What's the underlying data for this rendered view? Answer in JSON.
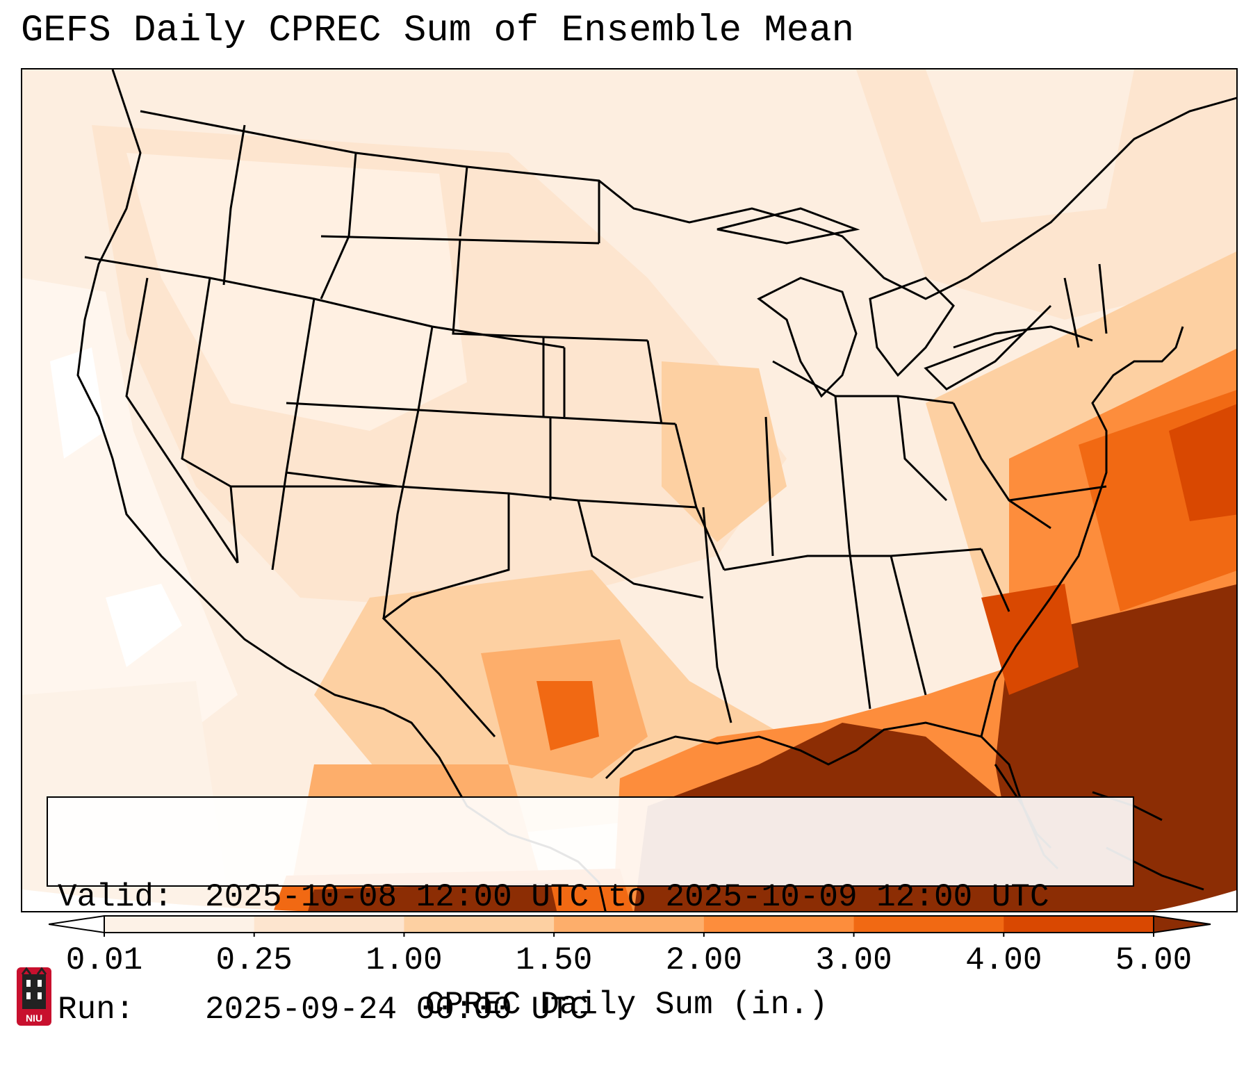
{
  "title": "GEFS Daily CPREC Sum of Ensemble Mean",
  "info": {
    "valid_label": "Valid:",
    "valid_value": "2025-10-08 12:00 UTC to 2025-10-09 12:00 UTC",
    "run_label": "Run:",
    "run_value": "2025-09-24 00:00 UTC"
  },
  "colorbar": {
    "label": "CPREC Daily Sum (in.)",
    "ticks": [
      "0.01",
      "0.25",
      "1.00",
      "1.50",
      "2.00",
      "3.00",
      "4.00",
      "5.00"
    ],
    "colors": [
      "#fdf2e7",
      "#fde5cf",
      "#fdd0a2",
      "#fdae6b",
      "#fd8d3c",
      "#f16913",
      "#d94801",
      "#8c2d04"
    ],
    "extend": "both"
  },
  "logo": {
    "text": "NIU",
    "colors": {
      "shield": "#c8102e",
      "tower": "#222222"
    }
  },
  "map": {
    "region": "Continental United States",
    "projection": "lambert-conformal",
    "heaviest_precip_areas": [
      "Gulf of Mexico",
      "Florida",
      "Atlantic off Southeast coast",
      "South-central Texas"
    ]
  }
}
